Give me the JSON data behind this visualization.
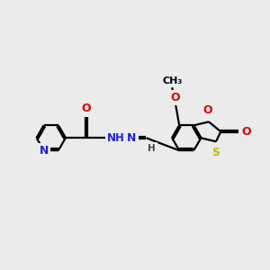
{
  "bg_color": "#ebebeb",
  "bond_color": "#000000",
  "line_width": 1.6,
  "atom_colors": {
    "N": "#2020dd",
    "O": "#dd0000",
    "S": "#bbbb00",
    "C": "#000000",
    "H": "#444444"
  },
  "font_size": 8.5,
  "sep": 0.055
}
